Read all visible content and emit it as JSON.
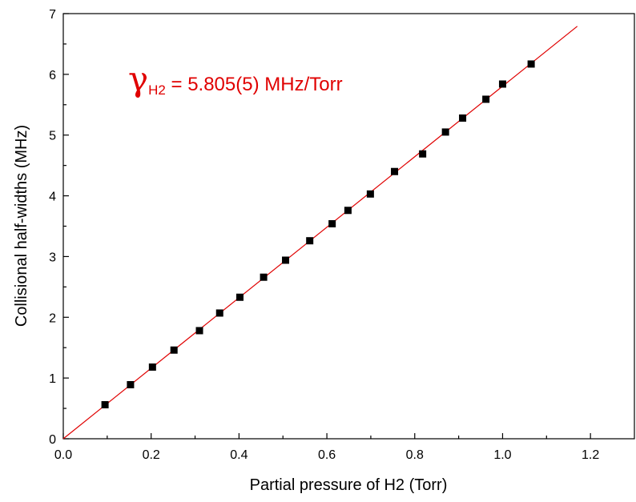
{
  "chart_data": {
    "type": "scatter",
    "xlabel": "Partial pressure of H2 (Torr)",
    "ylabel": "Collisional half-widths (MHz)",
    "xlim": [
      0.0,
      1.3
    ],
    "ylim": [
      0,
      7
    ],
    "x_ticks": [
      "0.0",
      "0.2",
      "0.4",
      "0.6",
      "0.8",
      "1.0",
      "1.2"
    ],
    "y_ticks": [
      "0",
      "1",
      "2",
      "3",
      "4",
      "5",
      "6",
      "7"
    ],
    "annotation": {
      "symbol": "γ",
      "subscript": "H2",
      "text": " = 5.805(5) MHz/Torr",
      "color": "#e00000"
    },
    "fit_line": {
      "slope": 5.805,
      "intercept": 0,
      "x_range": [
        0.0,
        1.17
      ],
      "color": "#e00000"
    },
    "series": [
      {
        "marker": "square",
        "color": "#000000",
        "points": [
          [
            0.095,
            0.56
          ],
          [
            0.153,
            0.89
          ],
          [
            0.203,
            1.18
          ],
          [
            0.252,
            1.46
          ],
          [
            0.31,
            1.78
          ],
          [
            0.356,
            2.07
          ],
          [
            0.402,
            2.33
          ],
          [
            0.456,
            2.66
          ],
          [
            0.506,
            2.94
          ],
          [
            0.561,
            3.26
          ],
          [
            0.612,
            3.54
          ],
          [
            0.648,
            3.76
          ],
          [
            0.699,
            4.03
          ],
          [
            0.754,
            4.4
          ],
          [
            0.818,
            4.69
          ],
          [
            0.87,
            5.05
          ],
          [
            0.909,
            5.28
          ],
          [
            0.962,
            5.59
          ],
          [
            1.0,
            5.84
          ],
          [
            1.065,
            6.17
          ]
        ]
      }
    ]
  }
}
